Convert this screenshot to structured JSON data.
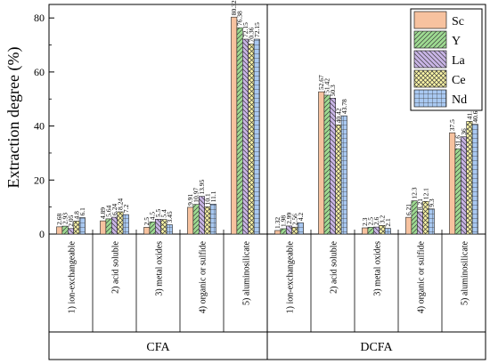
{
  "chart_data": {
    "type": "bar",
    "ylabel": "Extraction degree (%)",
    "ylim": [
      0,
      85
    ],
    "yticks": [
      0,
      20,
      40,
      60,
      80
    ],
    "legend_position": "top-right",
    "groups": [
      {
        "label": "CFA",
        "categories": [
          "1) ion-exchangeable",
          "2) acid soluble",
          "3) metal oxides",
          "4) organic or sulfide",
          "5) aluminosilicate"
        ],
        "series": [
          {
            "name": "Sc",
            "values": [
              2.68,
              4.89,
              2.5,
              9.91,
              80.32
            ],
            "labels": [
              "2.68",
              "4.89",
              "2.5",
              "9.91",
              "80.32"
            ]
          },
          {
            "name": "Y",
            "values": [
              2.93,
              5.64,
              4.5,
              10.97,
              76.38
            ],
            "labels": [
              "2.93",
              "5.64",
              "4.5",
              "10.97",
              "76.38"
            ]
          },
          {
            "name": "La",
            "values": [
              2.05,
              6.24,
              5.5,
              13.95,
              72.15
            ],
            "labels": [
              "2.05",
              "6.24",
              "5.5",
              "13.95",
              "72.15"
            ]
          },
          {
            "name": "Ce",
            "values": [
              4.8,
              8.24,
              5.4,
              10.1,
              70.36
            ],
            "labels": [
              "4.8",
              "8.24",
              "5.4",
              "10.1",
              "70.36"
            ]
          },
          {
            "name": "Nd",
            "values": [
              6.1,
              7.2,
              3.45,
              11.1,
              72.15
            ],
            "labels": [
              "6.1",
              "7.2",
              "3.45",
              "11.1",
              "72.15"
            ]
          }
        ]
      },
      {
        "label": "DCFA",
        "categories": [
          "1) ion-exchangeable",
          "2) acid soluble",
          "3) metal oxides",
          "4) organic or sulfide",
          "5) aluminosilicate"
        ],
        "series": [
          {
            "name": "Sc",
            "values": [
              1.32,
              52.67,
              2.3,
              6.21,
              37.5
            ],
            "labels": [
              "1.32",
              "52.67",
              "2.3",
              "6.21",
              "37.5"
            ]
          },
          {
            "name": "Y",
            "values": [
              1.98,
              51.42,
              2.5,
              12.3,
              31.6
            ],
            "labels": [
              "1.98",
              "51.42",
              "2.5",
              "12.3",
              "31.6"
            ]
          },
          {
            "name": "La",
            "values": [
              2.99,
              50.3,
              2.6,
              8.21,
              36.0
            ],
            "labels": [
              "2.99",
              "50.3",
              "2.6",
              "8.21",
              "36"
            ]
          },
          {
            "name": "Ce",
            "values": [
              2.56,
              40.42,
              3.2,
              12.1,
              41.72
            ],
            "labels": [
              "2.56",
              "40.42",
              "3.2",
              "12.1",
              "41.72"
            ]
          },
          {
            "name": "Nd",
            "values": [
              4.2,
              43.78,
              2.1,
              9.3,
              40.62
            ],
            "labels": [
              "4.2",
              "43.78",
              "2.1",
              "9.3",
              "40.62"
            ]
          }
        ]
      }
    ],
    "series_style": [
      {
        "name": "Sc",
        "fill": "#f7c29f",
        "pattern": "solid"
      },
      {
        "name": "Y",
        "fill": "#9edb92",
        "pattern": "diag-right"
      },
      {
        "name": "La",
        "fill": "#c9b5e6",
        "pattern": "diag-left"
      },
      {
        "name": "Ce",
        "fill": "#fbf5a6",
        "pattern": "cross"
      },
      {
        "name": "Nd",
        "fill": "#a9c9f2",
        "pattern": "grid"
      }
    ]
  }
}
